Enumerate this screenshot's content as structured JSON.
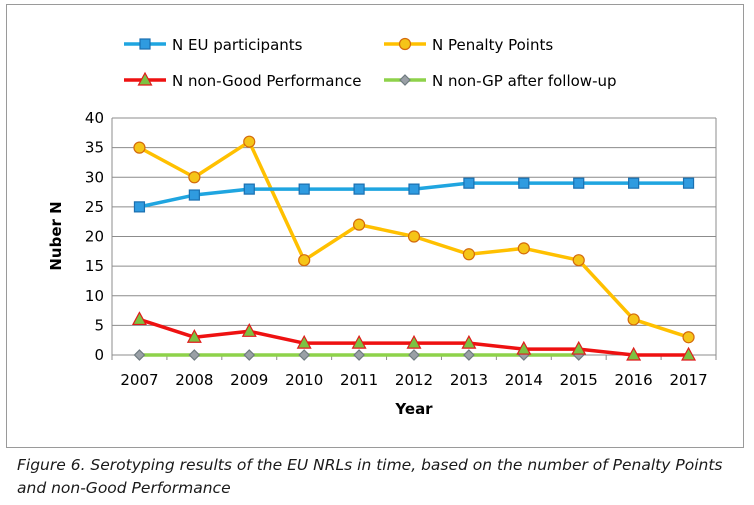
{
  "caption": "Figure 6. Serotyping results of the EU NRLs in time, based on the number of Penalty Points and non-Good Performance",
  "chart_data": {
    "type": "line",
    "title": "",
    "xlabel": "Year",
    "ylabel": "Nuber N",
    "ylim": [
      0,
      40
    ],
    "yticks": [
      0,
      5,
      10,
      15,
      20,
      25,
      30,
      35,
      40
    ],
    "grid": true,
    "legend_position": "top",
    "categories": [
      "2007",
      "2008",
      "2009",
      "2010",
      "2011",
      "2012",
      "2013",
      "2014",
      "2015",
      "2016",
      "2017"
    ],
    "series": [
      {
        "name": "N EU participants",
        "color": "#1fa5e0",
        "marker": "square",
        "marker_fill": "#2f9be0",
        "marker_stroke": "#1a6fb0",
        "values": [
          25,
          27,
          28,
          28,
          28,
          28,
          29,
          29,
          29,
          29,
          29
        ]
      },
      {
        "name": "N Penalty Points",
        "color": "#ffc000",
        "marker": "circle",
        "marker_fill": "#f5c518",
        "marker_stroke": "#d46a0c",
        "values": [
          35,
          30,
          36,
          16,
          22,
          20,
          17,
          18,
          16,
          6,
          3
        ]
      },
      {
        "name": "N non-Good Performance",
        "color": "#ee1111",
        "marker": "triangle",
        "marker_fill": "#7cc242",
        "marker_stroke": "#e01b1b",
        "values": [
          6,
          3,
          4,
          2,
          2,
          2,
          2,
          1,
          1,
          0,
          0
        ]
      },
      {
        "name": "N non-GP after follow-up",
        "color": "#8ed24a",
        "marker": "diamond",
        "marker_fill": "#9aa0a6",
        "marker_stroke": "#6f7a80",
        "values": [
          0,
          0,
          0,
          0,
          0,
          0,
          0,
          0,
          0,
          null,
          null
        ]
      }
    ]
  }
}
